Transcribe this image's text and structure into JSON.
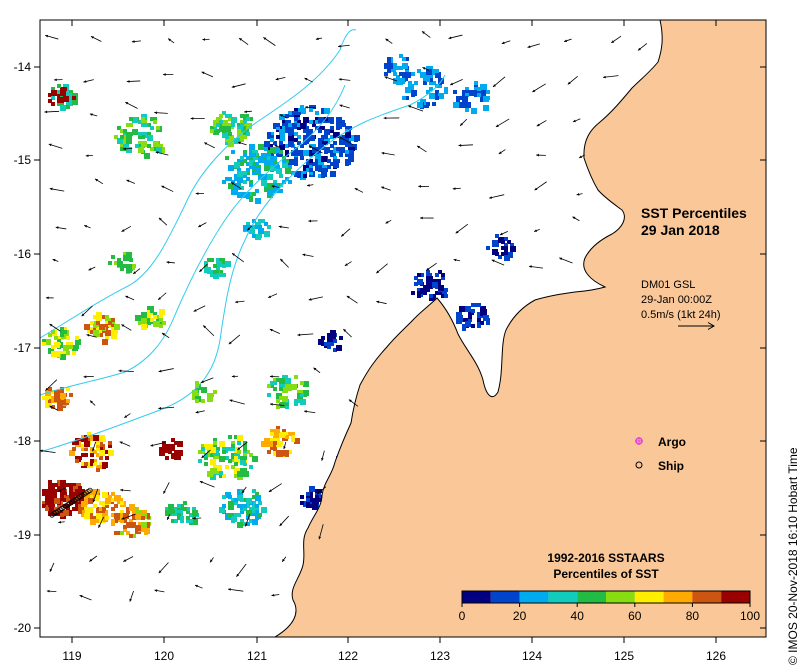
{
  "map": {
    "title": {
      "line1": "SST Percentiles",
      "line2": "29 Jan 2018"
    },
    "current_info": {
      "line1": "DM01 GSL",
      "line2": "29-Jan 00:00Z",
      "line3": "0.5m/s (1kt 24h)"
    },
    "legend_markers": [
      {
        "label": "Argo",
        "color": "#e040e0"
      },
      {
        "label": "Ship",
        "color": "#000000"
      }
    ],
    "credit": "© IMOS 20-Nov-2018 16:10 Hobart Time",
    "lon_ticks": [
      "119",
      "120",
      "121",
      "122",
      "123",
      "124",
      "125",
      "126"
    ],
    "lat_ticks": [
      "-14",
      "-15",
      "-16",
      "-17",
      "-18",
      "-19",
      "-20"
    ],
    "colorbar": {
      "title_line1": "1992-2016 SSTAARS",
      "title_line2": "Percentiles of SST",
      "tick_labels": [
        "0",
        "20",
        "40",
        "60",
        "80",
        "100"
      ],
      "colors": [
        "#000080",
        "#0044cc",
        "#00aaee",
        "#11ccbb",
        "#22bb44",
        "#88dd11",
        "#ffee00",
        "#ffaa00",
        "#cc5511",
        "#990000"
      ]
    },
    "land_color": "#fac898",
    "ocean_color": "#ffffff",
    "contour_color": "#33ccee"
  }
}
